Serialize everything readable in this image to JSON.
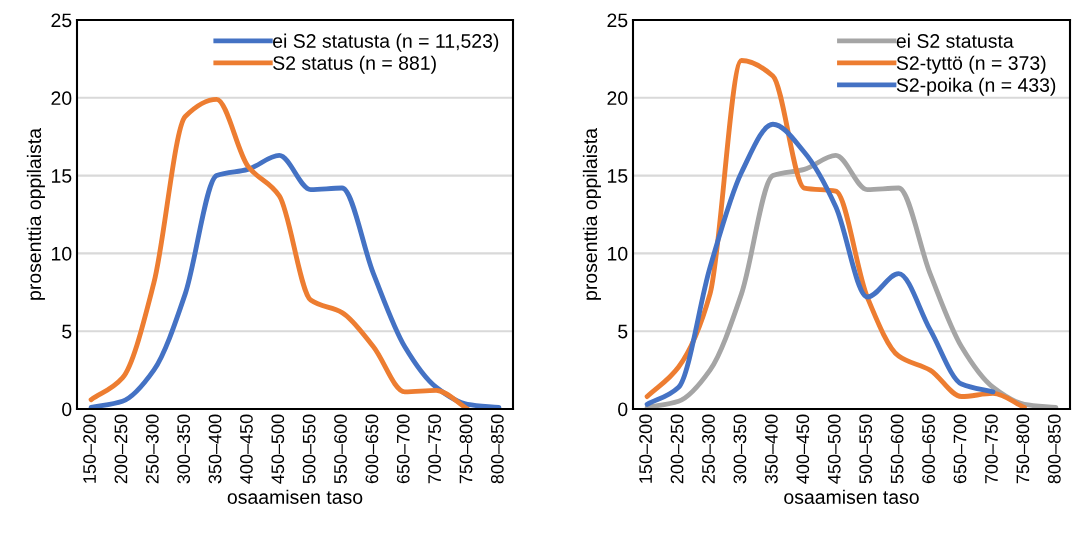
{
  "chart_data": [
    {
      "type": "line",
      "xlabel": "osaamisen taso",
      "ylabel": "prosenttia oppilaista",
      "categories": [
        "150–200",
        "200–250",
        "250–300",
        "300–350",
        "350–400",
        "400–450",
        "450–500",
        "500–550",
        "550–600",
        "600–650",
        "650–700",
        "700–750",
        "750–800",
        "800–850"
      ],
      "ylim": [
        0,
        25
      ],
      "yticks": [
        0,
        5,
        10,
        15,
        20,
        25
      ],
      "grid": "y",
      "legend": "top right",
      "series": [
        {
          "name": "ei S2 statusta (n = 11,523)",
          "color": "#4472c4",
          "values": [
            0.1,
            0.5,
            2.5,
            7.4,
            15.0,
            15.4,
            16.3,
            14.1,
            14.2,
            8.7,
            4.0,
            1.4,
            0.3,
            0.1
          ]
        },
        {
          "name": "S2 status (n = 881)",
          "color": "#ed7d31",
          "values": [
            0.6,
            2.0,
            8.1,
            18.8,
            19.9,
            15.6,
            13.7,
            7.0,
            6.2,
            4.0,
            1.1,
            1.2,
            0.0,
            null
          ]
        }
      ]
    },
    {
      "type": "line",
      "xlabel": "osaamisen taso",
      "ylabel": "prosenttia oppilaista",
      "categories": [
        "150–200",
        "200–250",
        "250–300",
        "300–350",
        "350–400",
        "400–450",
        "450–500",
        "500–550",
        "550–600",
        "600–650",
        "650–700",
        "700–750",
        "750–800",
        "800–850"
      ],
      "ylim": [
        0,
        25
      ],
      "yticks": [
        0,
        5,
        10,
        15,
        20,
        25
      ],
      "grid": "y",
      "legend": "top right",
      "series": [
        {
          "name": "ei S2 statusta",
          "color": "#a5a5a5",
          "values": [
            0.1,
            0.5,
            2.5,
            7.4,
            15.0,
            15.4,
            16.3,
            14.1,
            14.2,
            8.7,
            4.0,
            1.4,
            0.3,
            0.1
          ]
        },
        {
          "name": "S2-tyttö (n = 373)",
          "color": "#ed7d31",
          "values": [
            0.8,
            2.7,
            7.4,
            22.4,
            21.4,
            14.2,
            14.0,
            7.2,
            3.4,
            2.5,
            0.8,
            1.0,
            0.1,
            null
          ]
        },
        {
          "name": "S2-poika (n = 433)",
          "color": "#4472c4",
          "values": [
            0.3,
            1.4,
            9.1,
            15.2,
            18.3,
            16.5,
            13.0,
            7.2,
            8.7,
            5.1,
            1.6,
            1.1,
            null,
            null
          ]
        }
      ]
    }
  ]
}
